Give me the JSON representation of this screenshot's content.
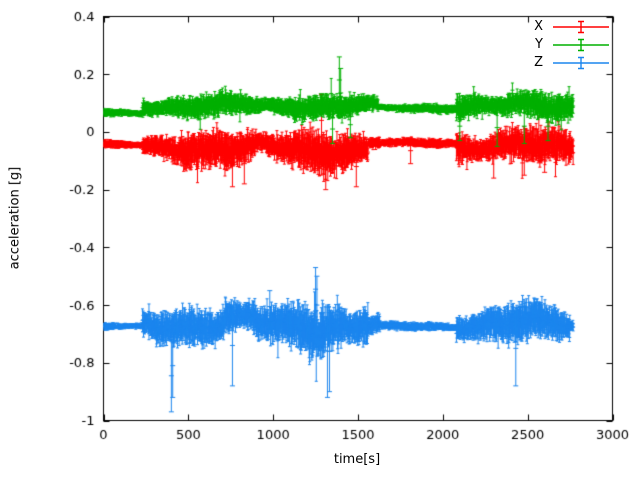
{
  "chart_data": {
    "type": "scatter-errorbars",
    "title": "",
    "xlabel": "time[s]",
    "ylabel": "acceleration [g]",
    "xlim": [
      0,
      3000
    ],
    "ylim": [
      -1,
      0.4
    ],
    "xticks": [
      {
        "v": 0,
        "label": "0"
      },
      {
        "v": 500,
        "label": "500"
      },
      {
        "v": 1000,
        "label": "1000"
      },
      {
        "v": 1500,
        "label": "1500"
      },
      {
        "v": 2000,
        "label": "2000"
      },
      {
        "v": 2500,
        "label": "2500"
      },
      {
        "v": 3000,
        "label": "3000"
      }
    ],
    "yticks": [
      {
        "v": -1,
        "label": "-1"
      },
      {
        "v": -0.8,
        "label": "-0.8"
      },
      {
        "v": -0.6,
        "label": "-0.6"
      },
      {
        "v": -0.4,
        "label": "-0.4"
      },
      {
        "v": -0.2,
        "label": "-0.2"
      },
      {
        "v": 0,
        "label": "0"
      },
      {
        "v": 0.2,
        "label": "0.2"
      },
      {
        "v": 0.4,
        "label": "0.4"
      }
    ],
    "grid": false,
    "legend_position": "top-right-inside",
    "axis_color": "#000000",
    "background": "#ffffff",
    "seed": 1337,
    "sample_step": 2,
    "t_start": 0,
    "t_end": 2770,
    "series": [
      {
        "name": "X",
        "color": "#ff0000",
        "baseline": -0.05,
        "segments": [
          [
            0,
            230,
            -0.045,
            0.012
          ],
          [
            230,
            470,
            -0.05,
            0.04
          ],
          [
            470,
            700,
            -0.055,
            0.05
          ],
          [
            700,
            900,
            -0.065,
            0.06
          ],
          [
            900,
            1150,
            -0.05,
            0.045
          ],
          [
            1150,
            1430,
            -0.06,
            0.06
          ],
          [
            1430,
            1560,
            -0.07,
            0.055
          ],
          [
            1560,
            1630,
            -0.04,
            0.025
          ],
          [
            1630,
            2080,
            -0.038,
            0.012
          ],
          [
            2080,
            2770,
            -0.05,
            0.05
          ]
        ],
        "spikes": [
          [
            760,
            -0.19,
            -0.03
          ],
          [
            830,
            -0.18,
            -0.04
          ],
          [
            1285,
            -0.05,
            0.13
          ],
          [
            1310,
            -0.2,
            -0.02
          ],
          [
            1490,
            -0.19,
            -0.05
          ],
          [
            1810,
            -0.11,
            -0.02
          ],
          [
            2300,
            -0.16,
            -0.02
          ],
          [
            2480,
            -0.15,
            -0.03
          ],
          [
            2600,
            -0.14,
            -0.02
          ]
        ]
      },
      {
        "name": "Y",
        "color": "#00b000",
        "baseline": 0.08,
        "segments": [
          [
            0,
            230,
            0.065,
            0.01
          ],
          [
            230,
            1620,
            0.09,
            0.032
          ],
          [
            1620,
            2080,
            0.082,
            0.012
          ],
          [
            2080,
            2770,
            0.09,
            0.038
          ]
        ],
        "spikes": [
          [
            1350,
            -0.04,
            0.06
          ],
          [
            1390,
            0.1,
            0.26
          ],
          [
            1398,
            0.05,
            0.22
          ],
          [
            1455,
            -0.02,
            0.07
          ],
          [
            2100,
            -0.03,
            0.07
          ],
          [
            2320,
            -0.05,
            0.08
          ],
          [
            2480,
            -0.04,
            0.08
          ],
          [
            2620,
            -0.03,
            0.07
          ]
        ]
      },
      {
        "name": "Z",
        "color": "#1c86ee",
        "baseline": -0.67,
        "segments": [
          [
            0,
            230,
            -0.675,
            0.012
          ],
          [
            230,
            700,
            -0.67,
            0.05
          ],
          [
            700,
            900,
            -0.655,
            0.065
          ],
          [
            900,
            1150,
            -0.67,
            0.055
          ],
          [
            1150,
            1560,
            -0.67,
            0.075
          ],
          [
            1560,
            1630,
            -0.67,
            0.035
          ],
          [
            1630,
            2080,
            -0.675,
            0.012
          ],
          [
            2080,
            2750,
            -0.665,
            0.055
          ],
          [
            2750,
            2770,
            -0.67,
            0.02
          ]
        ],
        "spikes": [
          [
            400,
            -0.97,
            -0.72
          ],
          [
            408,
            -0.92,
            -0.7
          ],
          [
            760,
            -0.88,
            -0.6
          ],
          [
            980,
            -0.66,
            -0.55
          ],
          [
            1250,
            -0.62,
            -0.47
          ],
          [
            1258,
            -0.7,
            -0.5
          ],
          [
            1320,
            -0.92,
            -0.6
          ],
          [
            1332,
            -0.9,
            -0.62
          ],
          [
            2430,
            -0.88,
            -0.62
          ]
        ]
      }
    ]
  }
}
